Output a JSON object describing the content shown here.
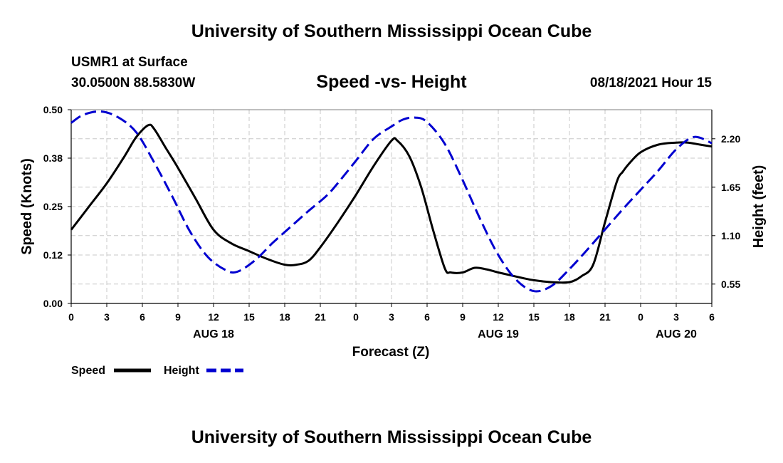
{
  "header": {
    "title": "University of Southern Mississippi Ocean Cube",
    "station": "USMR1 at Surface",
    "coords": "30.0500N  88.5830W",
    "chart_title": "Speed -vs- Height",
    "datetime": "08/18/2021 Hour 15"
  },
  "footer": {
    "title": "University of Southern Mississippi Ocean Cube"
  },
  "chart_data": {
    "type": "line",
    "title": "Speed -vs- Height",
    "xlabel": "Forecast (Z)",
    "ylabel": "Speed (Knots)",
    "y2label": "Height (feet)",
    "xlim": [
      0,
      54
    ],
    "ylim": [
      0,
      0.5
    ],
    "y2lim": [
      0.33,
      2.53
    ],
    "grid": true,
    "legend_position": "bottom-left",
    "x_ticks": [
      0,
      3,
      6,
      9,
      12,
      15,
      18,
      21,
      24,
      27,
      30,
      33,
      36,
      39,
      42,
      45,
      48,
      51,
      54
    ],
    "x_tick_labels": [
      "0",
      "3",
      "6",
      "9",
      "12",
      "15",
      "18",
      "21",
      "0",
      "3",
      "6",
      "9",
      "12",
      "15",
      "18",
      "21",
      "0",
      "3",
      "6"
    ],
    "date_labels": [
      {
        "x": 12,
        "label": "AUG 18"
      },
      {
        "x": 36,
        "label": "AUG 19"
      },
      {
        "x": 51,
        "label": "AUG 20"
      }
    ],
    "y_ticks": [
      0.0,
      0.125,
      0.25,
      0.375,
      0.5
    ],
    "y_tick_labels": [
      "0.00",
      "0.12",
      "0.25",
      "0.38",
      "0.50"
    ],
    "y2_ticks": [
      0.55,
      1.1,
      1.65,
      2.2
    ],
    "y2_tick_labels": [
      "0.55",
      "1.10",
      "1.65",
      "2.20"
    ],
    "series": [
      {
        "name": "Speed",
        "axis": "left",
        "color": "#000000",
        "dash": "solid",
        "x": [
          0,
          1.5,
          3,
          4.5,
          5.5,
          6.5,
          7,
          8,
          9,
          10.5,
          12,
          13.5,
          15,
          16.5,
          18,
          19,
          20,
          21,
          22.5,
          24,
          25.5,
          27,
          27.5,
          28.5,
          29.5,
          30.5,
          31.5,
          32,
          33,
          34,
          35,
          36,
          37,
          38,
          39,
          40.5,
          42,
          43,
          44,
          45,
          46,
          46.5,
          47,
          48,
          49.5,
          51,
          52,
          53,
          54
        ],
        "values": [
          0.19,
          0.25,
          0.31,
          0.38,
          0.43,
          0.46,
          0.45,
          0.4,
          0.35,
          0.27,
          0.19,
          0.155,
          0.135,
          0.115,
          0.1,
          0.1,
          0.11,
          0.145,
          0.21,
          0.28,
          0.355,
          0.42,
          0.42,
          0.38,
          0.3,
          0.19,
          0.09,
          0.08,
          0.08,
          0.092,
          0.088,
          0.08,
          0.073,
          0.066,
          0.06,
          0.055,
          0.055,
          0.07,
          0.1,
          0.21,
          0.315,
          0.34,
          0.36,
          0.39,
          0.41,
          0.415,
          0.415,
          0.41,
          0.405
        ]
      },
      {
        "name": "Height",
        "axis": "right",
        "color": "#0000d0",
        "dash": "dashed",
        "x": [
          0,
          1,
          2.5,
          4,
          5.5,
          7,
          8.5,
          10,
          11.5,
          13,
          14,
          15.5,
          17,
          18.5,
          20,
          21.5,
          22.5,
          24,
          25.5,
          27,
          28,
          29,
          30,
          31.5,
          33,
          34.5,
          36,
          37.5,
          39,
          40.5,
          42,
          43.5,
          45,
          46.5,
          48,
          49.5,
          51,
          52.5,
          54
        ],
        "values": [
          2.38,
          2.47,
          2.51,
          2.44,
          2.27,
          1.93,
          1.55,
          1.15,
          0.86,
          0.71,
          0.69,
          0.82,
          1.02,
          1.2,
          1.38,
          1.55,
          1.7,
          1.95,
          2.2,
          2.34,
          2.42,
          2.44,
          2.39,
          2.14,
          1.73,
          1.28,
          0.88,
          0.6,
          0.47,
          0.53,
          0.72,
          0.94,
          1.17,
          1.4,
          1.62,
          1.84,
          2.08,
          2.22,
          2.15
        ]
      }
    ]
  }
}
